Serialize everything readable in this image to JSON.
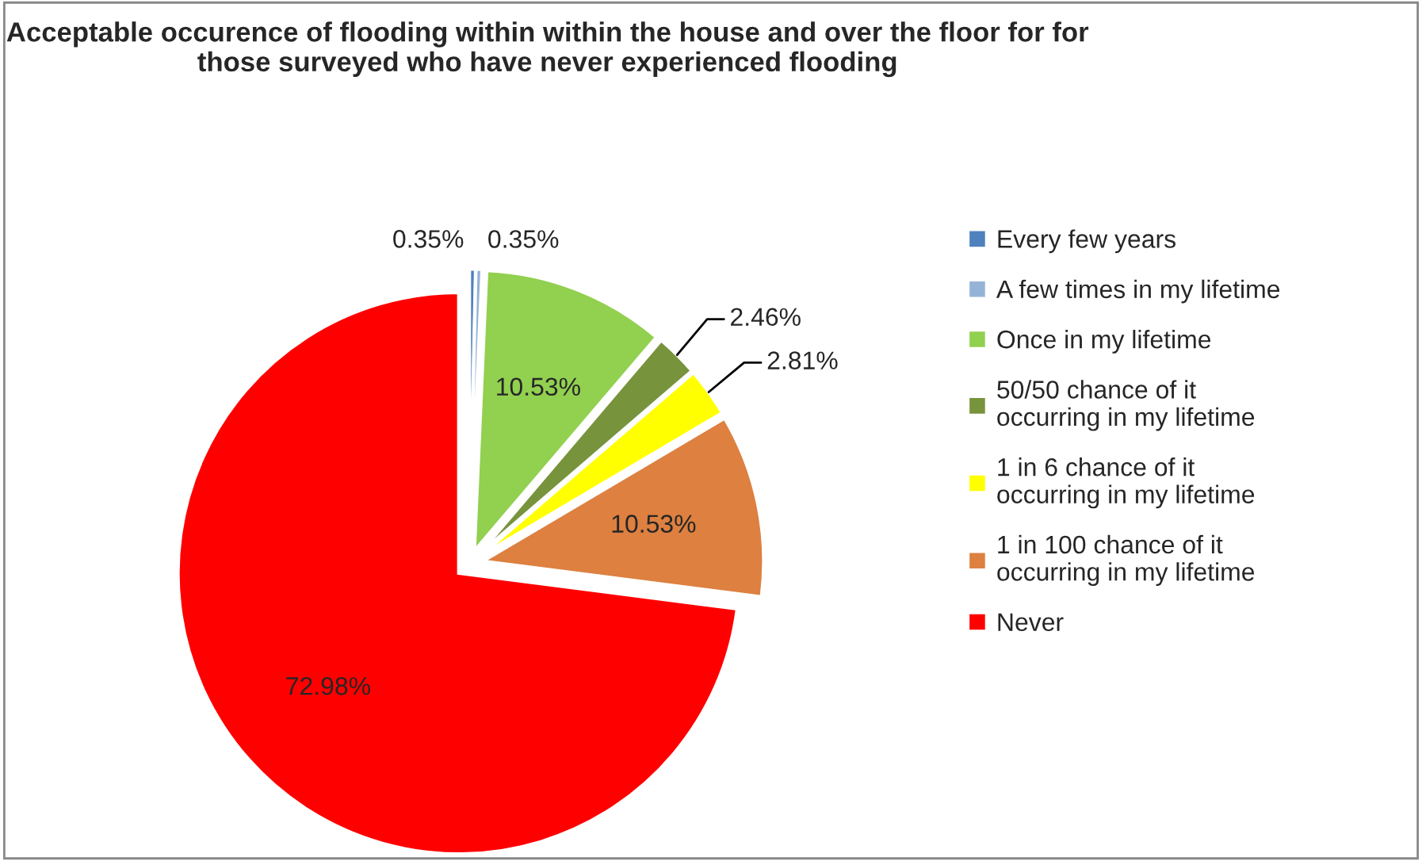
{
  "chart_data": {
    "type": "pie",
    "title": "Acceptable occurence of flooding within within the house and over the floor for for those surveyed who have never experienced flooding",
    "categories": [
      "Every few years",
      "A few times in my lifetime",
      "Once in my lifetime",
      "50/50 chance of it occurring in my lifetime",
      "1 in 6 chance of it occurring in my lifetime",
      "1 in 100 chance of it occurring in my lifetime",
      "Never"
    ],
    "values": [
      0.35,
      0.35,
      10.53,
      2.46,
      2.81,
      10.53,
      72.98
    ],
    "value_labels": [
      "0.35%",
      "0.35%",
      "10.53%",
      "2.46%",
      "2.81%",
      "10.53%",
      "72.98%"
    ],
    "colors": [
      "#4f81bd",
      "#95b3d7",
      "#92d050",
      "#77933c",
      "#ffff00",
      "#dd8040",
      "#ff0000"
    ],
    "legend": "right"
  }
}
